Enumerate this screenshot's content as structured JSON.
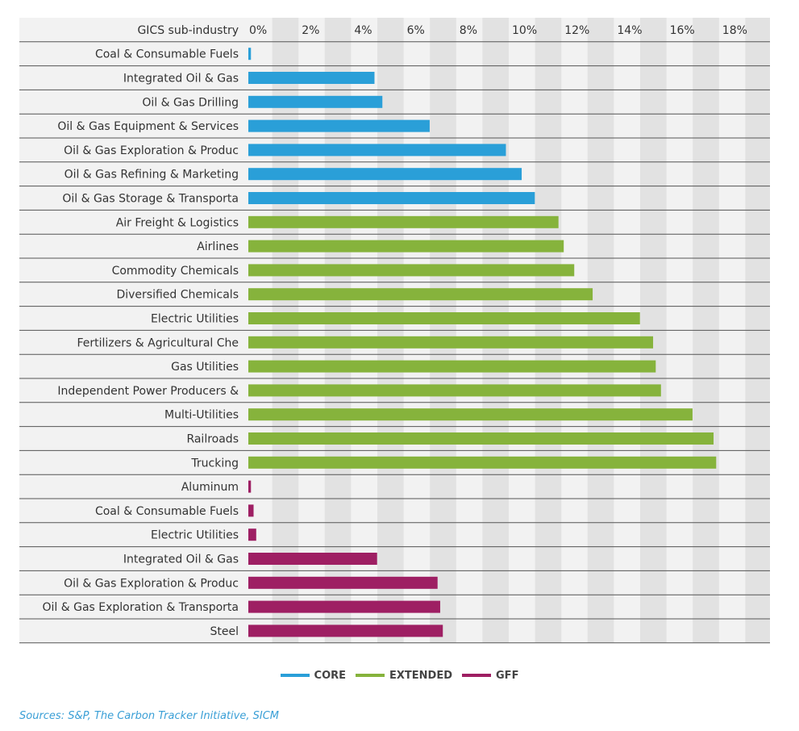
{
  "chart_data": {
    "type": "bar",
    "orientation": "horizontal",
    "category_header": "GICS sub-industry",
    "x_ticks": [
      "0%",
      "2%",
      "4%",
      "6%",
      "8%",
      "10%",
      "12%",
      "14%",
      "16%",
      "18%"
    ],
    "xlim": [
      0,
      20
    ],
    "grid": "alternating-column-bands",
    "legend_position": "bottom-center",
    "series": [
      {
        "name": "CORE",
        "color": "#2a9fd8"
      },
      {
        "name": "EXTENDED",
        "color": "#86b33c"
      },
      {
        "name": "GFF",
        "color": "#9e1f63"
      }
    ],
    "rows": [
      {
        "label": "Coal & Consumable Fuels",
        "value": 0.1,
        "series": "CORE"
      },
      {
        "label": "Integrated Oil & Gas",
        "value": 4.8,
        "series": "CORE"
      },
      {
        "label": "Oil & Gas Drilling",
        "value": 5.1,
        "series": "CORE"
      },
      {
        "label": "Oil & Gas Equipment & Services",
        "value": 6.9,
        "series": "CORE"
      },
      {
        "label": "Oil & Gas Exploration & Produc",
        "value": 9.8,
        "series": "CORE"
      },
      {
        "label": "Oil & Gas Refining & Marketing",
        "value": 10.4,
        "series": "CORE"
      },
      {
        "label": "Oil & Gas Storage & Transporta",
        "value": 10.9,
        "series": "CORE"
      },
      {
        "label": "Air Freight & Logistics",
        "value": 11.8,
        "series": "EXTENDED"
      },
      {
        "label": "Airlines",
        "value": 12.0,
        "series": "EXTENDED"
      },
      {
        "label": "Commodity Chemicals",
        "value": 12.4,
        "series": "EXTENDED"
      },
      {
        "label": "Diversified Chemicals",
        "value": 13.1,
        "series": "EXTENDED"
      },
      {
        "label": "Electric Utilities",
        "value": 14.9,
        "series": "EXTENDED"
      },
      {
        "label": "Fertilizers & Agricultural Che",
        "value": 15.4,
        "series": "EXTENDED"
      },
      {
        "label": "Gas Utilities",
        "value": 15.5,
        "series": "EXTENDED"
      },
      {
        "label": "Independent Power Producers &",
        "value": 15.7,
        "series": "EXTENDED"
      },
      {
        "label": "Multi-Utilities",
        "value": 16.9,
        "series": "EXTENDED"
      },
      {
        "label": "Railroads",
        "value": 17.7,
        "series": "EXTENDED"
      },
      {
        "label": "Trucking",
        "value": 17.8,
        "series": "EXTENDED"
      },
      {
        "label": "Aluminum",
        "value": 0.1,
        "series": "GFF"
      },
      {
        "label": "Coal & Consumable Fuels",
        "value": 0.2,
        "series": "GFF"
      },
      {
        "label": "Electric Utilities",
        "value": 0.3,
        "series": "GFF"
      },
      {
        "label": "Integrated Oil & Gas",
        "value": 4.9,
        "series": "GFF"
      },
      {
        "label": "Oil & Gas Exploration & Produc",
        "value": 7.2,
        "series": "GFF"
      },
      {
        "label": "Oil & Gas Exploration & Transporta",
        "value": 7.3,
        "series": "GFF"
      },
      {
        "label": "Steel",
        "value": 7.4,
        "series": "GFF"
      }
    ]
  },
  "source": "Sources: S&P, The Carbon Tracker Initiative, SICM"
}
